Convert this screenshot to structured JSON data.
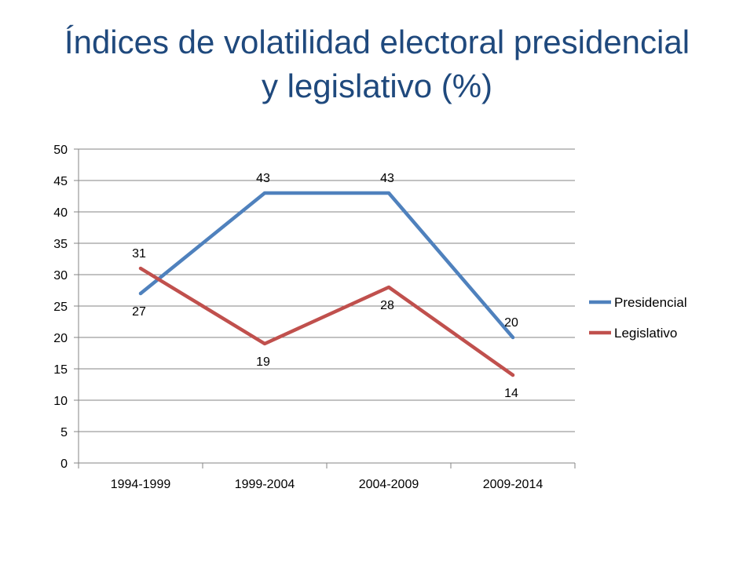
{
  "title_line1": "Índices de volatilidad electoral presidencial",
  "title_line2": "y legislativo (%)",
  "chart_data": {
    "type": "line",
    "title": "Índices de volatilidad electoral presidencial y legislativo (%)",
    "categories": [
      "1994-1999",
      "1999-2004",
      "2004-2009",
      "2009-2014"
    ],
    "ylim": [
      0,
      50
    ],
    "yticks": [
      0,
      5,
      10,
      15,
      20,
      25,
      30,
      35,
      40,
      45,
      50
    ],
    "grid": true,
    "legend_position": "right",
    "series": [
      {
        "name": "Presidencial",
        "values": [
          27,
          43,
          43,
          20
        ],
        "color": "#4f81bd"
      },
      {
        "name": "Legislativo",
        "values": [
          31,
          19,
          28,
          14
        ],
        "color": "#c0504d"
      }
    ]
  }
}
